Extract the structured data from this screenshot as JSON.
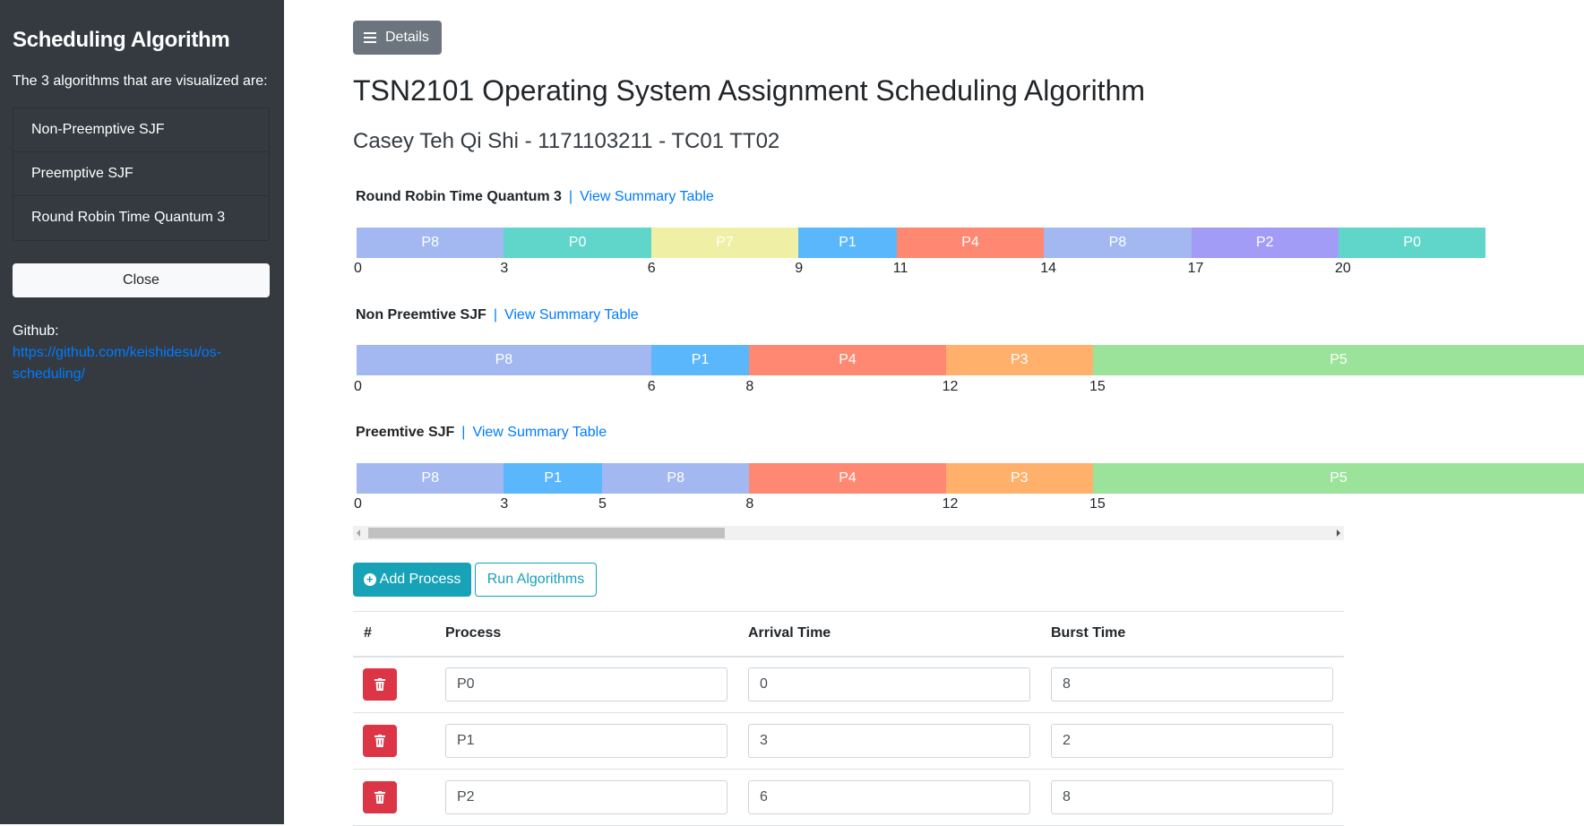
{
  "sidebar": {
    "title": "Scheduling Algorithm",
    "intro": "The 3 algorithms that are visualized are:",
    "items": [
      {
        "label": "Non-Preemptive SJF"
      },
      {
        "label": "Preemptive SJF"
      },
      {
        "label": "Round Robin Time Quantum 3"
      }
    ],
    "close_label": "Close",
    "github_label": "Github:",
    "github_url": "https://github.com/keishidesu/os-scheduling/"
  },
  "header": {
    "details_label": "Details",
    "title": "TSN2101 Operating System Assignment Scheduling Algorithm",
    "subtitle": "Casey Teh Qi Shi - 1171103211 - TC01 TT02"
  },
  "colors": {
    "P0": "#5fd6c9",
    "P1": "#5ab7fb",
    "P2": "#a39cf6",
    "P3": "#ffb06b",
    "P4": "#ff8872",
    "P5": "#9be39a",
    "P7": "#eff0a6",
    "P8": "#a3b8f1"
  },
  "charts": [
    {
      "name": "Round Robin Time Quantum 3",
      "link": "View Summary Table",
      "segments": [
        {
          "label": "P8",
          "start": 0,
          "end": 3
        },
        {
          "label": "P0",
          "start": 3,
          "end": 6
        },
        {
          "label": "P7",
          "start": 6,
          "end": 9
        },
        {
          "label": "P1",
          "start": 9,
          "end": 11
        },
        {
          "label": "P4",
          "start": 11,
          "end": 14
        },
        {
          "label": "P8",
          "start": 14,
          "end": 17
        },
        {
          "label": "P2",
          "start": 17,
          "end": 20
        },
        {
          "label": "P0",
          "start": 20,
          "end": 23
        }
      ],
      "ticks": [
        "0",
        "3",
        "6",
        "9",
        "11",
        "14",
        "17",
        "20"
      ]
    },
    {
      "name": "Non Preemtive SJF",
      "link": "View Summary Table",
      "segments": [
        {
          "label": "P8",
          "start": 0,
          "end": 6
        },
        {
          "label": "P1",
          "start": 6,
          "end": 8
        },
        {
          "label": "P4",
          "start": 8,
          "end": 12
        },
        {
          "label": "P3",
          "start": 12,
          "end": 15
        },
        {
          "label": "P5",
          "start": 15,
          "end": 25
        }
      ],
      "ticks": [
        "0",
        "6",
        "8",
        "12",
        "15"
      ]
    },
    {
      "name": "Preemtive SJF",
      "link": "View Summary Table",
      "segments": [
        {
          "label": "P8",
          "start": 0,
          "end": 3
        },
        {
          "label": "P1",
          "start": 3,
          "end": 5
        },
        {
          "label": "P8",
          "start": 5,
          "end": 8
        },
        {
          "label": "P4",
          "start": 8,
          "end": 12
        },
        {
          "label": "P3",
          "start": 12,
          "end": 15
        },
        {
          "label": "P5",
          "start": 15,
          "end": 25
        }
      ],
      "ticks": [
        "0",
        "3",
        "5",
        "8",
        "12",
        "15"
      ]
    }
  ],
  "actions": {
    "add_label": "Add Process",
    "run_label": "Run Algorithms"
  },
  "table": {
    "headers": [
      "#",
      "Process",
      "Arrival Time",
      "Burst Time"
    ],
    "rows": [
      {
        "process": "P0",
        "arrival": "0",
        "burst": "8"
      },
      {
        "process": "P1",
        "arrival": "3",
        "burst": "2"
      },
      {
        "process": "P2",
        "arrival": "6",
        "burst": "8"
      }
    ]
  }
}
